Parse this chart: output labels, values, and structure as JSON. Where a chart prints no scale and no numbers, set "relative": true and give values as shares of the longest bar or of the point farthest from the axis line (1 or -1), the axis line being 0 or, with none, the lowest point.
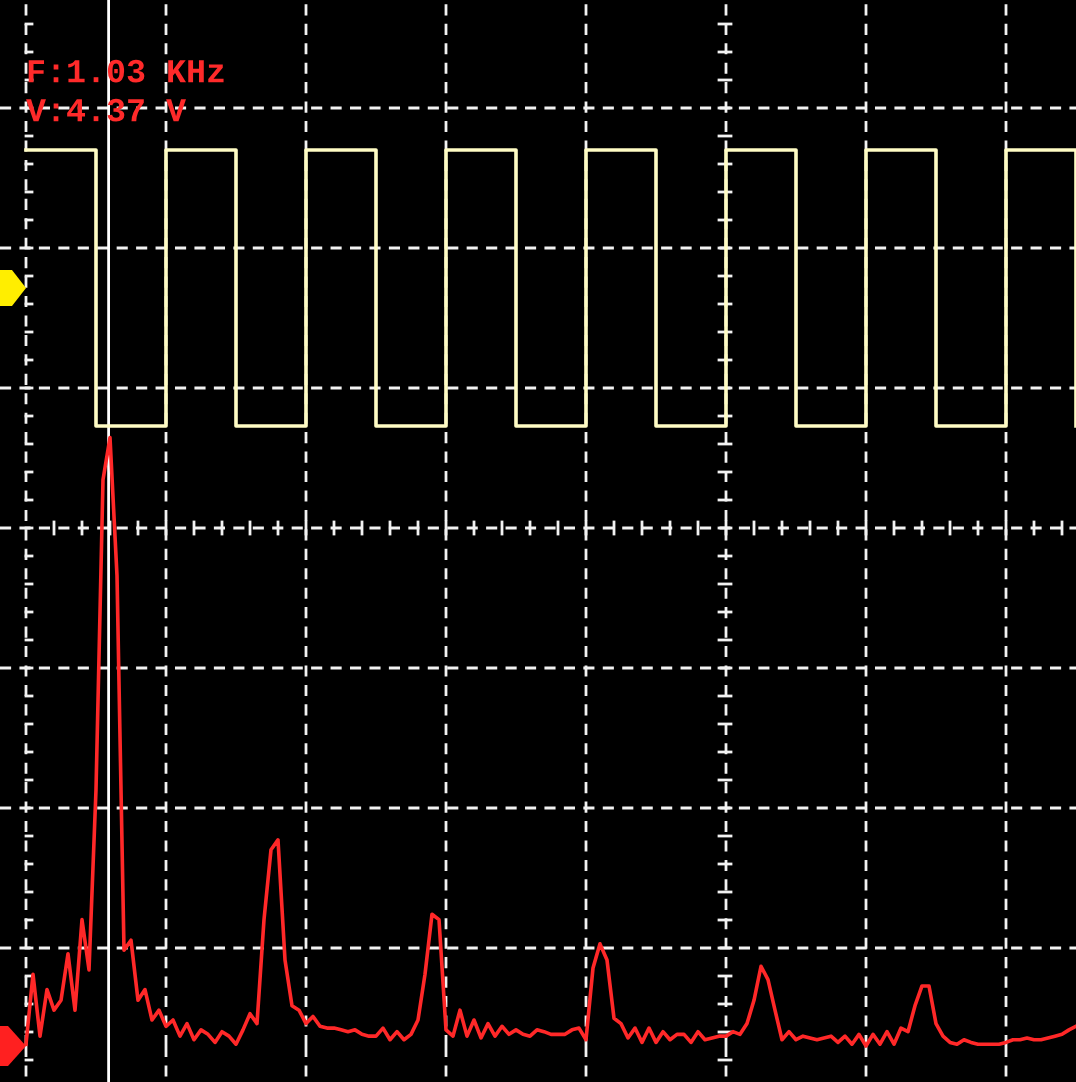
{
  "chart_data": {
    "type": "line",
    "relative": true,
    "categories": [
      null,
      null,
      null,
      null,
      null,
      null,
      null,
      null,
      null,
      null,
      null,
      null,
      null,
      null,
      null,
      null,
      null,
      null,
      null,
      null,
      null,
      null,
      null,
      null,
      null,
      null,
      null,
      null,
      null,
      null,
      null,
      null,
      null,
      null,
      null,
      null,
      null,
      null,
      null,
      null,
      null,
      null,
      null,
      null,
      null,
      null,
      null,
      null,
      null,
      null,
      null,
      null,
      null,
      null,
      null,
      null,
      null,
      null,
      null,
      null,
      null,
      null,
      null,
      null,
      null,
      null,
      null,
      null,
      null,
      null,
      null,
      null,
      null,
      null,
      null,
      null,
      null,
      null,
      null,
      null,
      null,
      null,
      null,
      null,
      null,
      null,
      null,
      null,
      null,
      null,
      null,
      null,
      null,
      null,
      null,
      null,
      null,
      null,
      null,
      null,
      null,
      null,
      null,
      null,
      null,
      null,
      null,
      null,
      null,
      null,
      null,
      null,
      null,
      null,
      null,
      null,
      null,
      null,
      null,
      null,
      null,
      null,
      null,
      null,
      null,
      null,
      null,
      null,
      null,
      null,
      null,
      null,
      null,
      null,
      null,
      null,
      null,
      null,
      null,
      null,
      null,
      null,
      null,
      null,
      null,
      null,
      null,
      null,
      null,
      null,
      null
    ],
    "series": [
      {
        "type": "step",
        "color": "#fffcc4",
        "values": [
          1,
          1,
          1,
          1,
          1,
          1,
          1,
          1,
          1,
          1,
          0.692,
          0.692,
          0.692,
          0.692,
          0.692,
          0.692,
          0.692,
          0.692,
          0.692,
          0.692,
          1,
          1,
          1,
          1,
          1,
          1,
          1,
          1,
          1,
          1,
          0.692,
          0.692,
          0.692,
          0.692,
          0.692,
          0.692,
          0.692,
          0.692,
          0.692,
          0.692,
          1,
          1,
          1,
          1,
          1,
          1,
          1,
          1,
          1,
          1,
          0.692,
          0.692,
          0.692,
          0.692,
          0.692,
          0.692,
          0.692,
          0.692,
          0.692,
          0.692,
          1,
          1,
          1,
          1,
          1,
          1,
          1,
          1,
          1,
          1,
          0.692,
          0.692,
          0.692,
          0.692,
          0.692,
          0.692,
          0.692,
          0.692,
          0.692,
          0.692,
          1,
          1,
          1,
          1,
          1,
          1,
          1,
          1,
          1,
          1,
          0.692,
          0.692,
          0.692,
          0.692,
          0.692,
          0.692,
          0.692,
          0.692,
          0.692,
          0.692,
          1,
          1,
          1,
          1,
          1,
          1,
          1,
          1,
          1,
          1,
          0.692,
          0.692,
          0.692,
          0.692,
          0.692,
          0.692,
          0.692,
          0.692,
          0.692,
          0.692,
          1,
          1,
          1,
          1,
          1,
          1,
          1,
          1,
          1,
          1,
          0.692,
          0.692,
          0.692,
          0.692,
          0.692,
          0.692,
          0.692,
          0.692,
          0.692,
          0.692,
          1,
          1,
          1,
          1,
          1,
          1,
          1,
          1,
          1,
          1,
          0.692
        ]
      },
      {
        "color": "#ff2828",
        "values": [
          0.002,
          0.08,
          0.011,
          0.063,
          0.04,
          0.051,
          0.103,
          0.04,
          0.141,
          0.085,
          0.286,
          0.632,
          0.679,
          0.525,
          0.107,
          0.118,
          0.051,
          0.063,
          0.029,
          0.04,
          0.022,
          0.029,
          0.011,
          0.025,
          0.007,
          0.018,
          0.013,
          0.004,
          0.016,
          0.011,
          0.002,
          0.018,
          0.036,
          0.025,
          0.141,
          0.219,
          0.23,
          0.096,
          0.045,
          0.04,
          0.025,
          0.033,
          0.022,
          0.02,
          0.02,
          0.018,
          0.016,
          0.018,
          0.013,
          0.011,
          0.011,
          0.02,
          0.007,
          0.016,
          0.007,
          0.013,
          0.029,
          0.08,
          0.147,
          0.141,
          0.018,
          0.011,
          0.04,
          0.011,
          0.029,
          0.009,
          0.025,
          0.011,
          0.022,
          0.013,
          0.018,
          0.013,
          0.011,
          0.018,
          0.016,
          0.013,
          0.013,
          0.013,
          0.018,
          0.02,
          0.007,
          0.087,
          0.114,
          0.096,
          0.031,
          0.025,
          0.009,
          0.02,
          0.004,
          0.02,
          0.004,
          0.016,
          0.007,
          0.013,
          0.013,
          0.004,
          0.016,
          0.007,
          0.009,
          0.011,
          0.011,
          0.016,
          0.013,
          0.025,
          0.051,
          0.089,
          0.074,
          0.04,
          0.007,
          0.016,
          0.007,
          0.011,
          0.009,
          0.007,
          0.009,
          0.011,
          0.004,
          0.011,
          0.002,
          0.013,
          0.0,
          0.013,
          0.002,
          0.016,
          0.002,
          0.02,
          0.016,
          0.045,
          0.067,
          0.067,
          0.025,
          0.011,
          0.004,
          0.002,
          0.007,
          0.004,
          0.002,
          0.002,
          0.002,
          0.002,
          0.004,
          0.007,
          0.007,
          0.009,
          0.007,
          0.007,
          0.009,
          0.011,
          0.013,
          0.018,
          0.022
        ]
      }
    ],
    "annotations": [
      "F:1.03 KHz",
      "V:4.37 V"
    ],
    "grid": true
  }
}
